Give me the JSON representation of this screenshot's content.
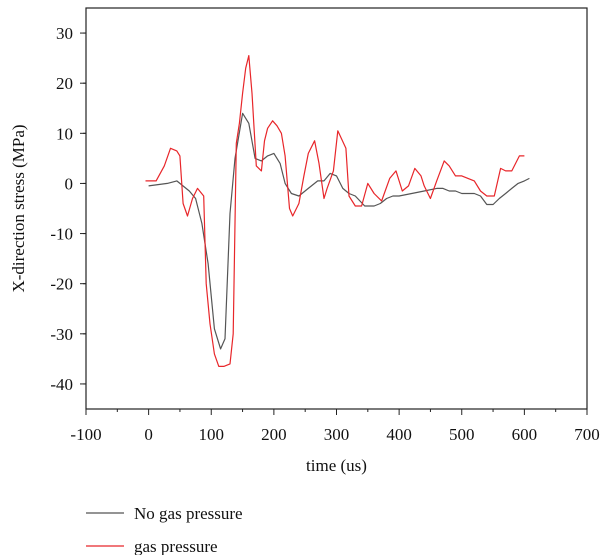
{
  "chart_data": {
    "type": "line",
    "title": "",
    "xlabel": "time (us)",
    "ylabel": "X-direction stress (MPa)",
    "xlim": [
      -100,
      700
    ],
    "ylim": [
      -45,
      35
    ],
    "x_ticks": [
      -100,
      0,
      100,
      200,
      300,
      400,
      500,
      600,
      700
    ],
    "y_ticks": [
      -40,
      -30,
      -20,
      -10,
      0,
      10,
      20,
      30
    ],
    "x_tick_labels": [
      "-100",
      "0",
      "100",
      "200",
      "300",
      "400",
      "500",
      "600",
      "700"
    ],
    "y_tick_labels": [
      "-40",
      "-30",
      "-20",
      "-10",
      "0",
      "10",
      "20",
      "30"
    ],
    "grid": false,
    "legend_position": "bottom-left",
    "series": [
      {
        "name": "No gas pressure",
        "color": "#555555",
        "x": [
          0,
          30,
          45,
          65,
          75,
          85,
          95,
          105,
          115,
          122,
          130,
          138,
          150,
          160,
          170,
          180,
          190,
          200,
          210,
          218,
          228,
          240,
          255,
          270,
          280,
          290,
          300,
          310,
          320,
          330,
          345,
          360,
          370,
          380,
          390,
          400,
          420,
          440,
          460,
          470,
          480,
          490,
          500,
          510,
          520,
          530,
          540,
          550,
          560,
          570,
          580,
          590,
          600,
          608
        ],
        "y": [
          -0.5,
          0,
          0.5,
          -1.5,
          -3,
          -8,
          -16,
          -29,
          -33,
          -31,
          -6,
          5,
          14,
          12,
          5,
          4.5,
          5.5,
          6,
          4,
          0,
          -2,
          -2.5,
          -1,
          0.5,
          0.5,
          2,
          1.5,
          -1,
          -2,
          -2.5,
          -4.5,
          -4.5,
          -4,
          -3,
          -2.5,
          -2.5,
          -2,
          -1.5,
          -1,
          -1,
          -1.5,
          -1.5,
          -2,
          -2,
          -2,
          -2.5,
          -4.2,
          -4.2,
          -3,
          -2,
          -1,
          0,
          0.5,
          1
        ]
      },
      {
        "name": "gas pressure",
        "color": "#e8262a",
        "x": [
          -5,
          12,
          25,
          35,
          45,
          50,
          55,
          62,
          70,
          78,
          88,
          92,
          98,
          105,
          112,
          120,
          130,
          135,
          140,
          145,
          150,
          155,
          160,
          165,
          172,
          180,
          185,
          190,
          198,
          205,
          212,
          218,
          225,
          230,
          240,
          248,
          255,
          265,
          272,
          280,
          285,
          295,
          302,
          315,
          320,
          330,
          340,
          350,
          360,
          372,
          385,
          395,
          405,
          415,
          425,
          435,
          440,
          450,
          460,
          472,
          480,
          490,
          500,
          510,
          520,
          530,
          540,
          552,
          562,
          570,
          580,
          592,
          600
        ],
        "y": [
          0.5,
          0.5,
          3.5,
          7,
          6.5,
          5.5,
          -4,
          -6.5,
          -3,
          -1,
          -2.5,
          -20,
          -28,
          -34,
          -36.5,
          -36.5,
          -36,
          -30,
          8,
          12,
          18,
          23,
          25.5,
          18,
          3.5,
          2.5,
          8.5,
          11,
          12.5,
          11.5,
          10,
          5.5,
          -5,
          -6.5,
          -4,
          1.5,
          6,
          8.5,
          4,
          -3,
          -1,
          2.5,
          10.5,
          7,
          -2.5,
          -4.5,
          -4.5,
          0,
          -2,
          -3.5,
          1,
          2.5,
          -1.5,
          -0.5,
          3,
          1.5,
          -0.5,
          -3,
          0.5,
          4.5,
          3.5,
          1.5,
          1.5,
          1,
          0.5,
          -1.5,
          -2.5,
          -2.5,
          3,
          2.5,
          2.5,
          5.5,
          5.5
        ]
      }
    ]
  }
}
